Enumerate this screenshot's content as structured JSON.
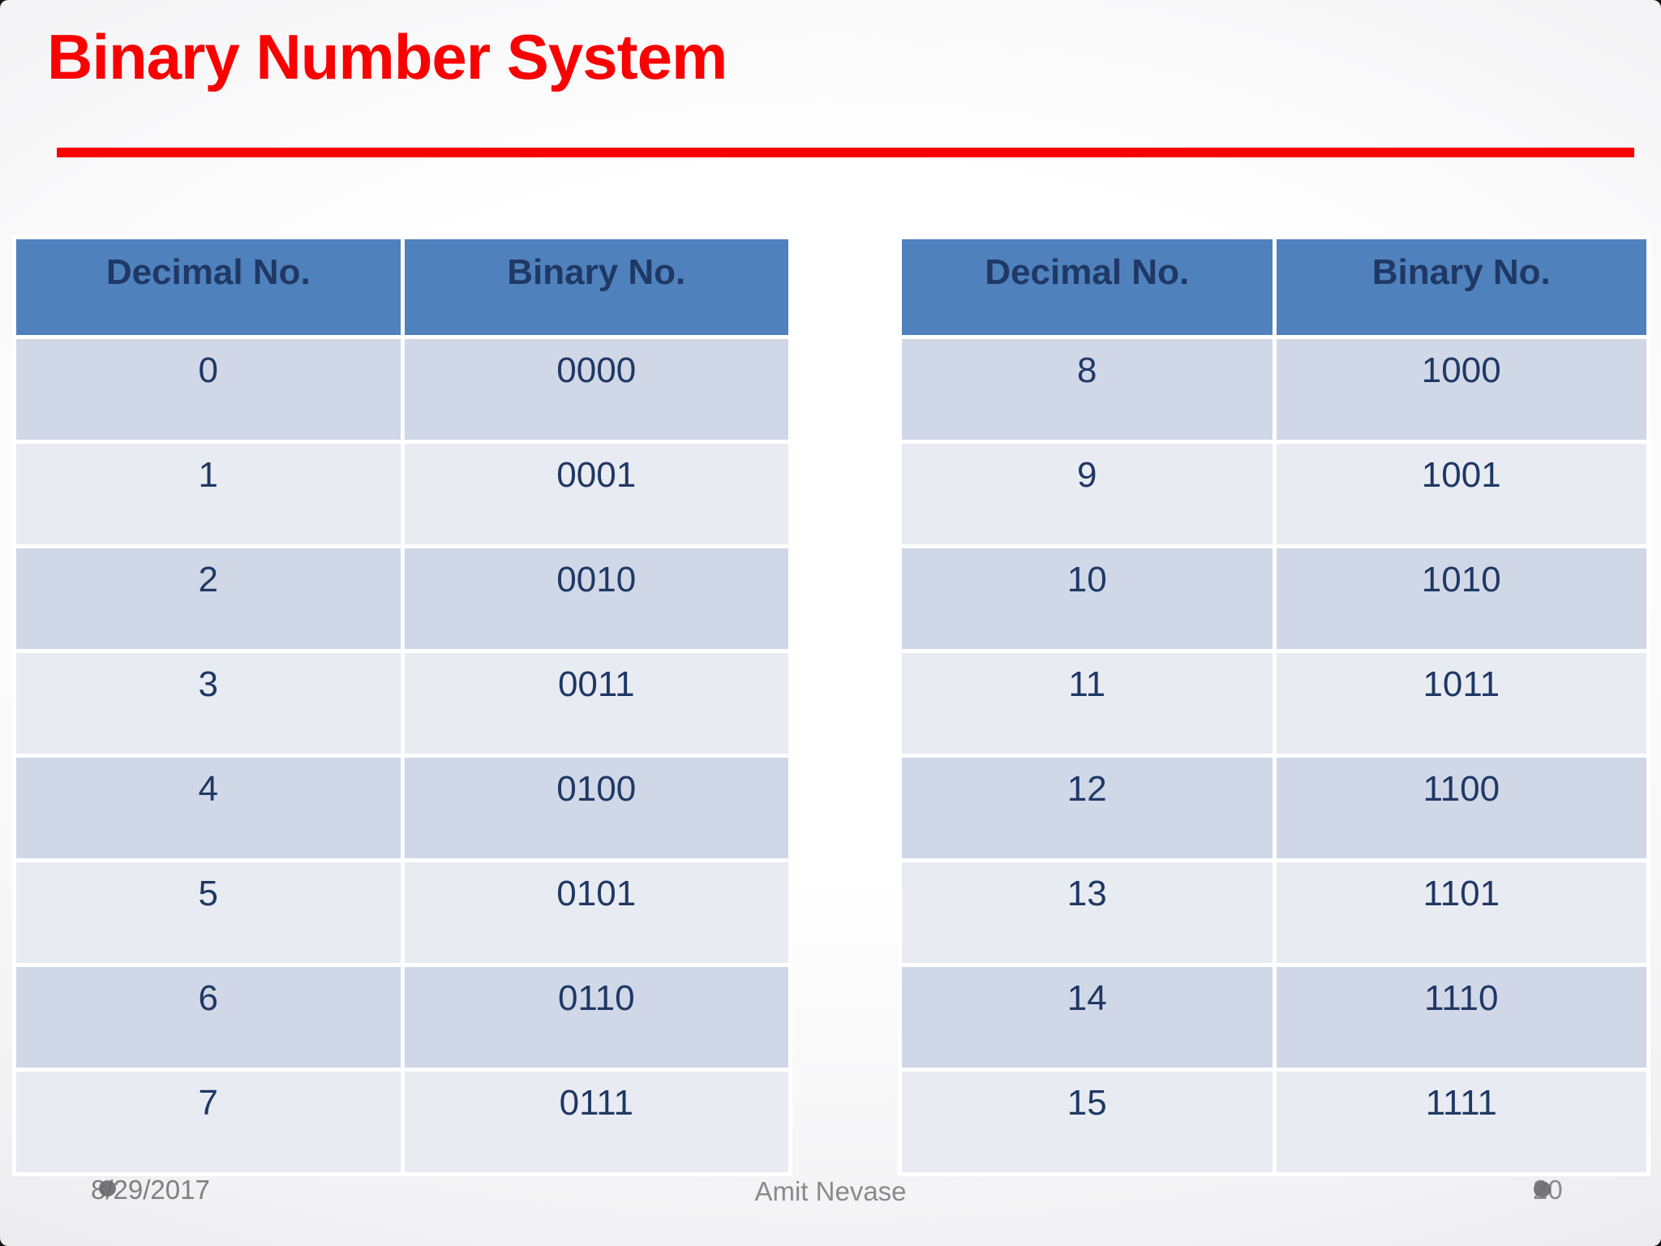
{
  "slide": {
    "title": "Binary Number System",
    "footer": {
      "date": "8/29/2017",
      "author": "Amit Nevase",
      "page_number": "20"
    }
  },
  "tables": [
    {
      "headers": [
        "Decimal No.",
        "Binary No."
      ],
      "rows": [
        [
          "0",
          "0000"
        ],
        [
          "1",
          "0001"
        ],
        [
          "2",
          "0010"
        ],
        [
          "3",
          "0011"
        ],
        [
          "4",
          "0100"
        ],
        [
          "5",
          "0101"
        ],
        [
          "6",
          "0110"
        ],
        [
          "7",
          "0111"
        ]
      ]
    },
    {
      "headers": [
        "Decimal No.",
        "Binary No."
      ],
      "rows": [
        [
          "8",
          "1000"
        ],
        [
          "9",
          "1001"
        ],
        [
          "10",
          "1010"
        ],
        [
          "11",
          "1011"
        ],
        [
          "12",
          "1100"
        ],
        [
          "13",
          "1101"
        ],
        [
          "14",
          "1110"
        ],
        [
          "15",
          "1111"
        ]
      ]
    }
  ],
  "colors": {
    "title_red": "#fa0000",
    "rule_red": "#fb0000",
    "header_blue": "#4f81bd",
    "band_dark": "#d0d7e7",
    "band_light": "#e9ebf2",
    "text_navy": "#1f3864",
    "footer_gray": "#8a8a8d"
  }
}
